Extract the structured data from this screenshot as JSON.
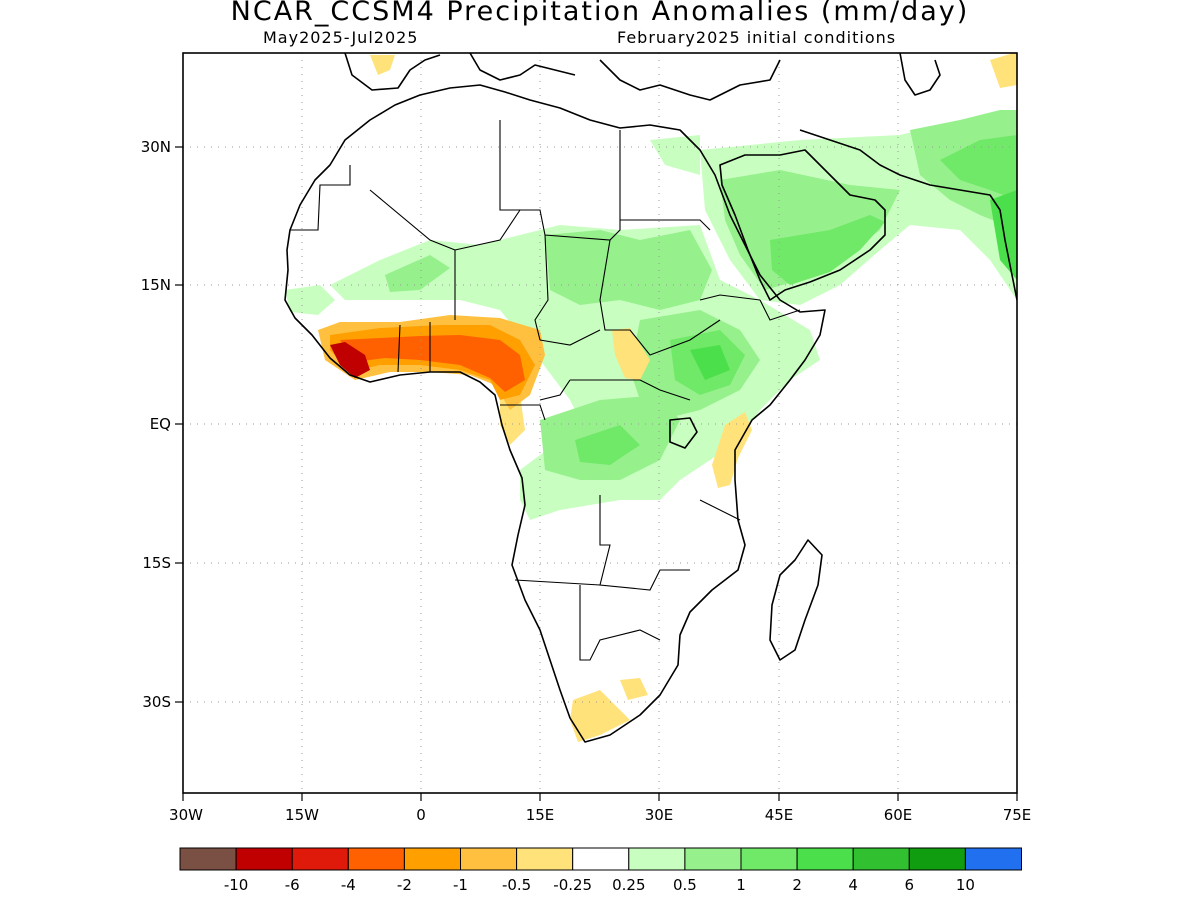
{
  "title": "NCAR_CCSM4 Precipitation Anomalies (mm/day)",
  "subtitle_left": "May2025-Jul2025",
  "subtitle_right": "February2025 initial conditions",
  "map": {
    "lon_range": [
      -30,
      75
    ],
    "lat_range": [
      -46,
      46
    ],
    "x_ticks": [
      "30W",
      "15W",
      "0",
      "15E",
      "30E",
      "45E",
      "60E",
      "75E"
    ],
    "y_ticks": [
      "30N",
      "15N",
      "EQ",
      "15S",
      "30S"
    ],
    "grid": true
  },
  "colorbar": {
    "colors": [
      "#7a5044",
      "#c00000",
      "#e01a0a",
      "#ff6000",
      "#ffa000",
      "#ffc040",
      "#ffe27a",
      "#ffffff",
      "#c8ffc0",
      "#96f08c",
      "#70e868",
      "#4be04b",
      "#30c030",
      "#109e10",
      "#2070f0"
    ],
    "labels": [
      "-10",
      "-6",
      "-4",
      "-2",
      "-1",
      "-0.5",
      "-0.25",
      "0.25",
      "0.5",
      "1",
      "2",
      "4",
      "6",
      "10"
    ]
  }
}
